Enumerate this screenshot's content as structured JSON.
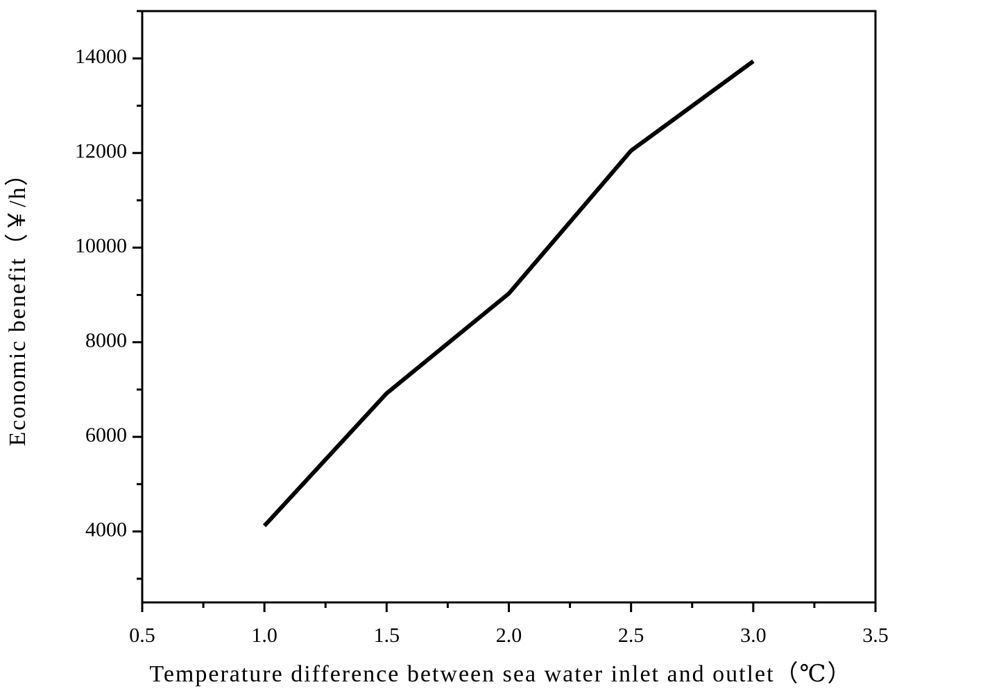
{
  "chart_data": {
    "type": "line",
    "x_label": "Temperature difference between sea water inlet and outlet（℃）",
    "y_label": "Economic benefit（￥/h）",
    "x": [
      1.0,
      1.5,
      2.0,
      2.5,
      3.0
    ],
    "series": [
      {
        "color": "#000000",
        "values": [
          4120,
          6920,
          9030,
          12050,
          13940
        ]
      }
    ],
    "xlim": [
      0.5,
      3.5
    ],
    "xticks": [
      0.5,
      {
        "value": 1,
        "label": "1.0"
      },
      1.5,
      {
        "value": 2,
        "label": "2.0"
      },
      2.5,
      {
        "value": 3,
        "label": "3.0"
      },
      3.5
    ],
    "ylim": [
      2500,
      15000
    ],
    "yticks": [
      4000,
      6000,
      8000,
      10000,
      12000,
      14000
    ],
    "grid": false
  }
}
